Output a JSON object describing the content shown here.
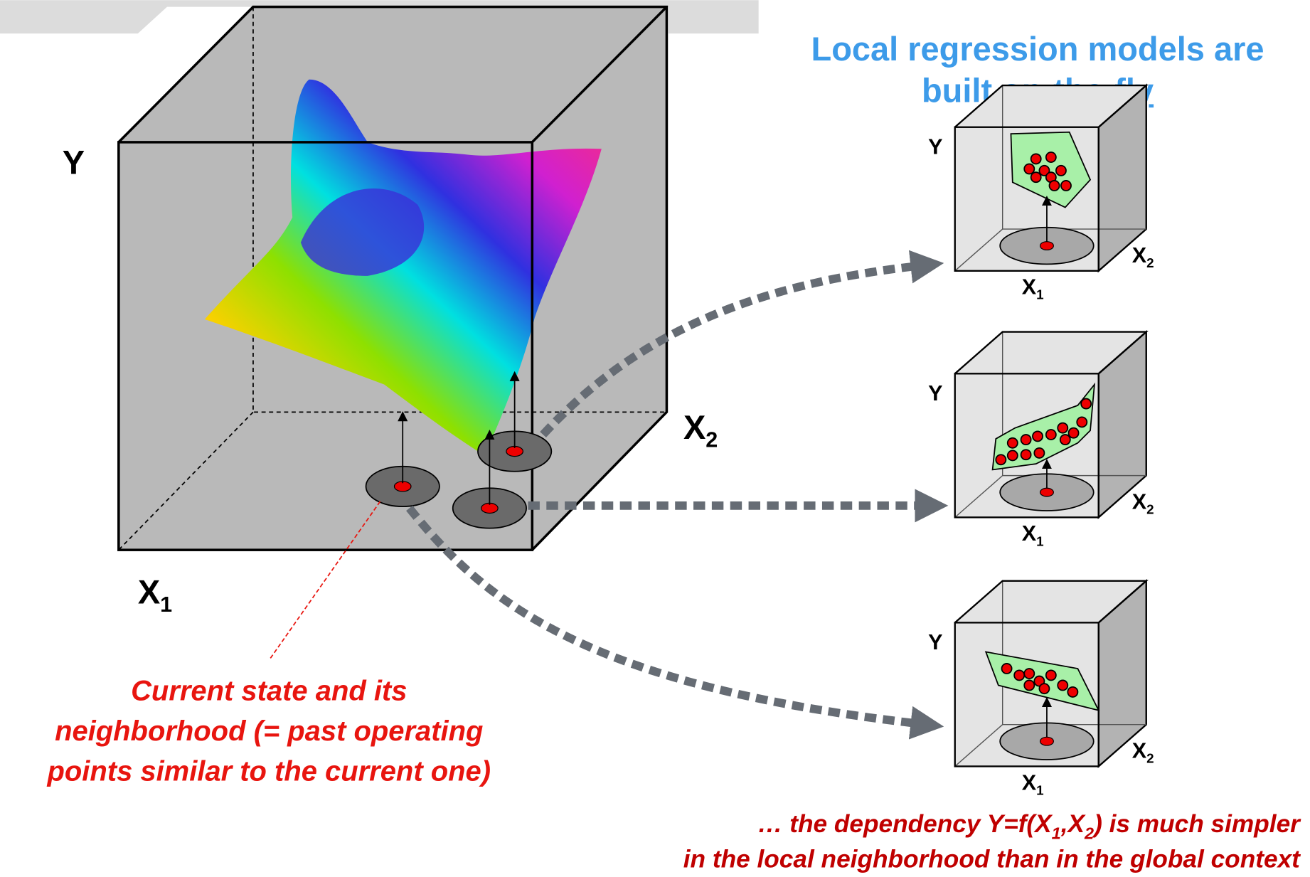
{
  "main_cube": {
    "y_label": "Y",
    "x1_label": {
      "base": "X",
      "sub": "1"
    },
    "x2_label": {
      "base": "X",
      "sub": "2"
    }
  },
  "annotation": {
    "lines": [
      "Current state and its",
      "neighborhood (= past operating",
      "points similar to the current one)"
    ]
  },
  "title": {
    "line1": "Local regression models are",
    "line2_prefix": "built",
    "line2_link": "on-the-fly"
  },
  "local_models": [
    {
      "y_label": "Y",
      "x1_label": {
        "base": "X",
        "sub": "1"
      },
      "x2_label": {
        "base": "X",
        "sub": "2"
      }
    },
    {
      "y_label": "Y",
      "x1_label": {
        "base": "X",
        "sub": "1"
      },
      "x2_label": {
        "base": "X",
        "sub": "2"
      }
    },
    {
      "y_label": "Y",
      "x1_label": {
        "base": "X",
        "sub": "1"
      },
      "x2_label": {
        "base": "X",
        "sub": "2"
      }
    }
  ],
  "caption": {
    "line1": [
      "… the dependency Y=f(X",
      "1",
      ",X",
      "2",
      ") is much simpler"
    ],
    "line2": "in the local neighborhood than in the global context"
  }
}
